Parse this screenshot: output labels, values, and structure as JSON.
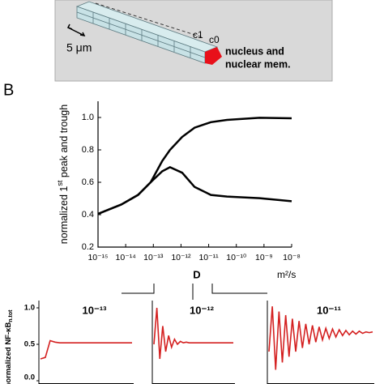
{
  "diagram": {
    "labels": [
      "c1",
      "c0"
    ],
    "scale": "5 μm",
    "nucleus": [
      "nucleus and",
      "nuclear mem."
    ]
  },
  "panel_label": "B",
  "chart_data": [
    {
      "type": "line",
      "y_label": [
        "normalized 1",
        "st",
        " peak and trough"
      ],
      "x_label": "D",
      "x_unit": "m²/s",
      "log_x": true,
      "xlim": [
        1e-15,
        1e-08
      ],
      "xticks": [
        {
          "value": 1e-15,
          "label": "10⁻¹⁵"
        },
        {
          "value": 1e-14,
          "label": "10⁻¹⁴"
        },
        {
          "value": 1e-13,
          "label": "10⁻¹³"
        },
        {
          "value": 1e-12,
          "label": "10⁻¹²"
        },
        {
          "value": 1e-11,
          "label": "10⁻¹¹"
        },
        {
          "value": 1e-10,
          "label": "10⁻¹⁰"
        },
        {
          "value": 1e-09,
          "label": "10⁻⁹"
        },
        {
          "value": 1e-08,
          "label": "10⁻⁸"
        }
      ],
      "ylim": [
        0.2,
        1.1
      ],
      "yticks": [
        0.2,
        0.4,
        0.6,
        0.8,
        {
          "value": 1,
          "label": "1.0"
        }
      ],
      "x": [
        1e-15,
        7e-15,
        2.8e-14,
        8e-14,
        2.1e-13,
        4e-13,
        1.1e-12,
        3.1e-12,
        1.2e-11,
        4.6e-11,
        6.9e-10,
        1e-08
      ],
      "series": [
        {
          "color": "#000000",
          "values": [
            0.405,
            0.463,
            0.522,
            0.6,
            0.732,
            0.8,
            0.88,
            0.937,
            0.971,
            0.985,
            0.998,
            0.995
          ]
        },
        {
          "color": "#000000",
          "values": [
            0.405,
            0.463,
            0.522,
            0.6,
            0.668,
            0.693,
            0.659,
            0.571,
            0.522,
            0.512,
            0.502,
            0.483
          ]
        }
      ]
    },
    {
      "type": "line",
      "title": "10⁻¹³",
      "color": "#d42020",
      "y_label": [
        "normalized NF-κB",
        "n.tot"
      ],
      "ylim": [
        0,
        1.1
      ],
      "yticks": [
        {
          "value": 0,
          "label": "0.0"
        },
        0.5,
        {
          "value": 1,
          "label": "1.0"
        }
      ],
      "values": [
        0.3,
        0.32,
        0.55,
        0.53,
        0.52,
        0.52,
        0.52,
        0.52,
        0.52,
        0.52,
        0.52,
        0.52,
        0.52,
        0.52,
        0.52,
        0.52,
        0.52,
        0.52,
        0.52,
        0.52
      ]
    },
    {
      "type": "line",
      "title": "10⁻¹²",
      "color": "#d42020",
      "ylim": [
        0,
        1.1
      ],
      "values": [
        0.5,
        1.0,
        0.3,
        0.75,
        0.4,
        0.62,
        0.46,
        0.57,
        0.5,
        0.54,
        0.52,
        0.53,
        0.52,
        0.52,
        0.52,
        0.52,
        0.52,
        0.52,
        0.52,
        0.52,
        0.52,
        0.52,
        0.52,
        0.52,
        0.52,
        0.52,
        0.52,
        0.52
      ]
    },
    {
      "type": "line",
      "title": "10⁻¹¹",
      "color": "#d42020",
      "ylim": [
        0,
        1.1
      ],
      "values": [
        0.4,
        1.02,
        0.15,
        0.95,
        0.25,
        0.9,
        0.33,
        0.85,
        0.4,
        0.82,
        0.45,
        0.78,
        0.5,
        0.76,
        0.53,
        0.74,
        0.56,
        0.72,
        0.58,
        0.71,
        0.6,
        0.7,
        0.62,
        0.69,
        0.63,
        0.68,
        0.64,
        0.68,
        0.65,
        0.67,
        0.66,
        0.67
      ]
    }
  ]
}
